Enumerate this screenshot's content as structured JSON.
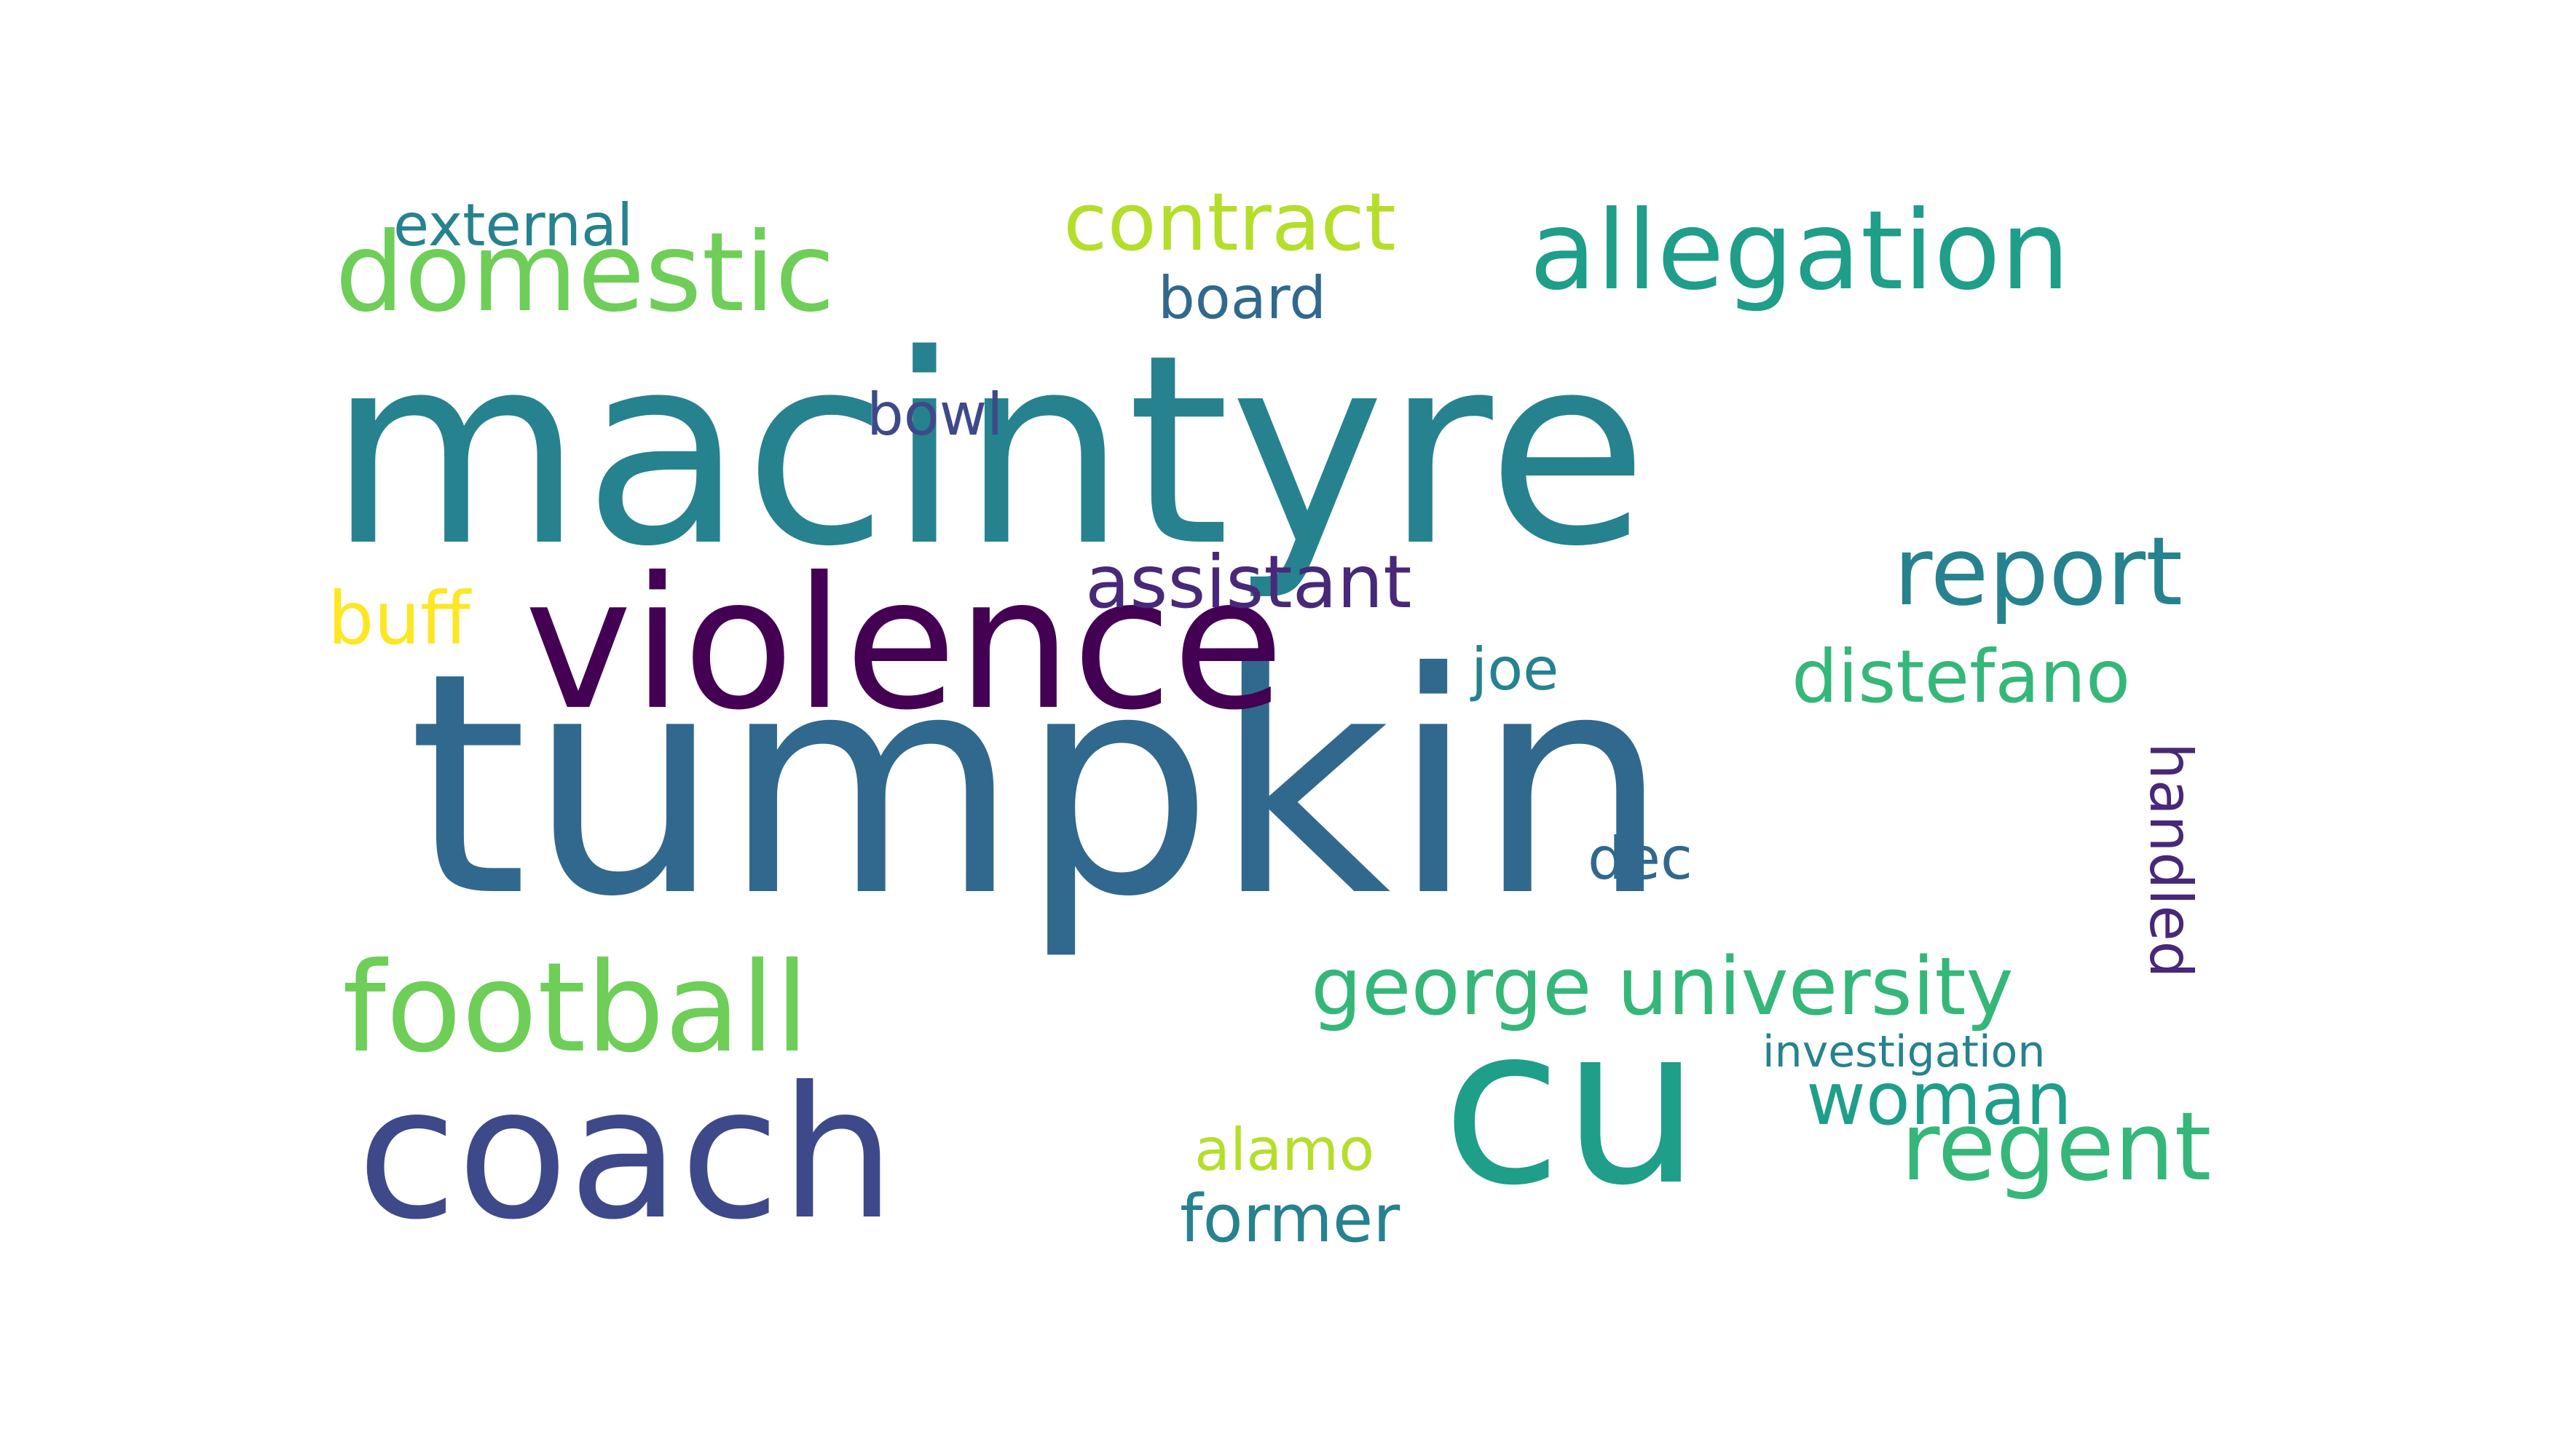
{
  "word_cloud": {
    "palette": [
      "#440154",
      "#482878",
      "#3e4989",
      "#31688e",
      "#26828e",
      "#1f9e89",
      "#35b779",
      "#6ece58",
      "#b5de2b",
      "#fde725"
    ],
    "words": [
      {
        "text": "macintyre",
        "color": "#26828e"
      },
      {
        "text": "tumpkin",
        "color": "#31688e"
      },
      {
        "text": "violence",
        "color": "#440154"
      },
      {
        "text": "coach",
        "color": "#3e4989"
      },
      {
        "text": "cu",
        "color": "#1f9e89"
      },
      {
        "text": "football",
        "color": "#6ece58"
      },
      {
        "text": "allegation",
        "color": "#1f9e89"
      },
      {
        "text": "domestic",
        "color": "#6ece58"
      },
      {
        "text": "report",
        "color": "#26828e"
      },
      {
        "text": "regent",
        "color": "#35b779"
      },
      {
        "text": "george university",
        "color": "#35b779"
      },
      {
        "text": "contract",
        "color": "#b5de2b"
      },
      {
        "text": "assistant",
        "color": "#482878"
      },
      {
        "text": "distefano",
        "color": "#35b779"
      },
      {
        "text": "buff",
        "color": "#fde725"
      },
      {
        "text": "woman",
        "color": "#1f9e89"
      },
      {
        "text": "former",
        "color": "#26828e"
      },
      {
        "text": "board",
        "color": "#31688e"
      },
      {
        "text": "external",
        "color": "#26828e"
      },
      {
        "text": "bowl",
        "color": "#3e4989"
      },
      {
        "text": "handled",
        "color": "#482878"
      },
      {
        "text": "dec",
        "color": "#31688e"
      },
      {
        "text": "alamo",
        "color": "#b5de2b"
      },
      {
        "text": "joe",
        "color": "#26828e"
      },
      {
        "text": "investigation",
        "color": "#26828e"
      }
    ]
  }
}
